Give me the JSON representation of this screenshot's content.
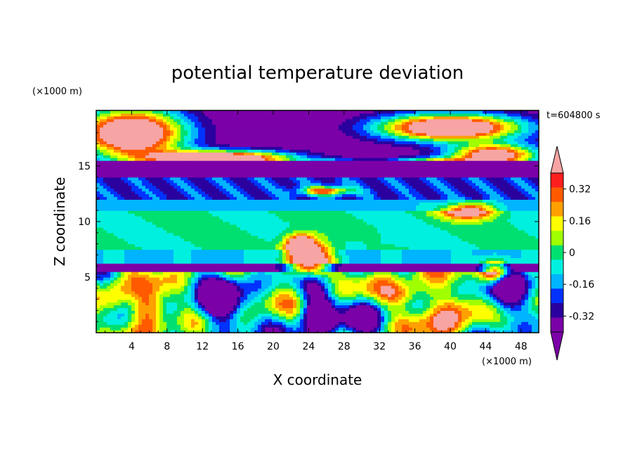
{
  "chart_data": {
    "type": "heatmap",
    "title": "potential temperature deviation",
    "xlabel": "X coordinate",
    "ylabel": "Z coordinate",
    "x_unit": "(×1000 m)",
    "y_unit": "(×1000 m)",
    "time_label": "t=604800 s",
    "xlim": [
      0,
      50
    ],
    "ylim": [
      0,
      20
    ],
    "x_ticks": [
      4,
      8,
      12,
      16,
      20,
      24,
      28,
      32,
      36,
      40,
      44,
      48
    ],
    "y_ticks": [
      5,
      10,
      15
    ],
    "colorbar": {
      "levels": [
        -0.4,
        -0.32,
        -0.24,
        -0.16,
        -0.08,
        0,
        0.08,
        0.16,
        0.24,
        0.32,
        0.4
      ],
      "labels": [
        "0.32",
        "0.16",
        "0",
        "-0.16",
        "-0.32"
      ],
      "label_values": [
        0.32,
        0.16,
        0,
        -0.16,
        -0.32
      ],
      "colors": [
        "#7b00a8",
        "#2a009e",
        "#0032ff",
        "#00b4ff",
        "#00f0e0",
        "#00e070",
        "#a0ff00",
        "#ffff00",
        "#ffa000",
        "#ff5a00",
        "#ff1e1e"
      ],
      "over_color": "#f7a4a4",
      "under_color": "#7b00a8"
    },
    "bands": [
      {
        "z": [
          0,
          5.5
        ],
        "value": "mixed",
        "note": "turbulent lower layer"
      },
      {
        "z": [
          5.5,
          6.2
        ],
        "value": -0.4
      },
      {
        "z": [
          6.2,
          7.5
        ],
        "value": -0.1
      },
      {
        "z": [
          7.5,
          11
        ],
        "value": 0.02
      },
      {
        "z": [
          11,
          12
        ],
        "value": -0.1
      },
      {
        "z": [
          12,
          14
        ],
        "value": -0.25
      },
      {
        "z": [
          14,
          15.5
        ],
        "value": -0.4
      },
      {
        "z": [
          15.5,
          20
        ],
        "value": "mixed",
        "note": "upper layer with positive blobs"
      }
    ]
  }
}
